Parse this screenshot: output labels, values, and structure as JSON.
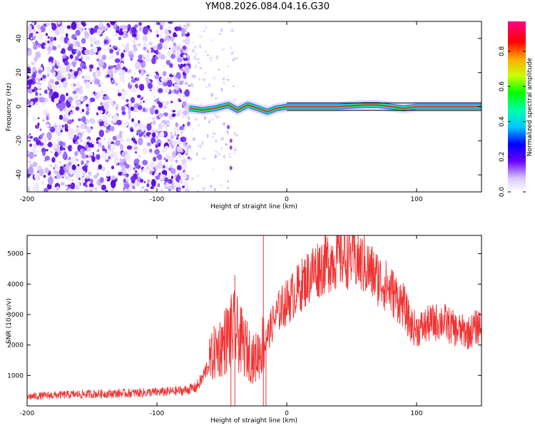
{
  "title": "YM08.2026.084.04.16.G30",
  "chart_data": [
    {
      "type": "heatmap",
      "title": "YM08.2026.084.04.16.G30",
      "xlabel": "Height of straight line (km)",
      "ylabel": "Frequency (Hz)",
      "xlim": [
        -200,
        150
      ],
      "ylim": [
        -50,
        50
      ],
      "xticks": [
        -200,
        -100,
        0,
        100
      ],
      "yticks": [
        -40,
        -20,
        0,
        20,
        40
      ],
      "track": {
        "description_x": [
          -75,
          -65,
          -55,
          -45,
          -38,
          -30,
          -22,
          -15,
          -8,
          0,
          20,
          40,
          60,
          70,
          80,
          90,
          100,
          120,
          150
        ],
        "description_y": [
          -1,
          -2,
          -1,
          1,
          -2,
          1,
          -1,
          -3,
          -1,
          0,
          0,
          0,
          1,
          1,
          0,
          -1,
          0,
          0,
          0
        ]
      }
    },
    {
      "type": "line",
      "title": "",
      "xlabel": "Height of straight line (km)",
      "ylabel": "SNR (10 * v/v)",
      "xlim": [
        -200,
        150
      ],
      "ylim": [
        0,
        5600
      ],
      "xticks": [
        -200,
        -100,
        0,
        100
      ],
      "yticks": [
        1000,
        2000,
        3000,
        4000,
        5000
      ],
      "color": "#f03232",
      "x": [
        -200,
        -180,
        -160,
        -140,
        -120,
        -100,
        -90,
        -80,
        -70,
        -65,
        -60,
        -55,
        -50,
        -45,
        -40,
        -35,
        -30,
        -25,
        -20,
        -15,
        -10,
        -5,
        0,
        10,
        20,
        30,
        40,
        50,
        60,
        70,
        80,
        90,
        95,
        100,
        110,
        120,
        130,
        140,
        150
      ],
      "y": [
        300,
        350,
        380,
        400,
        420,
        450,
        470,
        500,
        600,
        900,
        1400,
        1800,
        2000,
        2300,
        2500,
        2100,
        1800,
        1500,
        1900,
        2300,
        2800,
        3200,
        3400,
        3900,
        4400,
        4700,
        4900,
        4900,
        4600,
        4200,
        3800,
        3300,
        2700,
        2500,
        2700,
        2800,
        2500,
        2400,
        2700
      ]
    }
  ],
  "colorbar": {
    "label": "Normalized spectral amplitude",
    "ticks": [
      "0.0",
      "0.2",
      "0.4",
      "0.6",
      "0.8"
    ]
  }
}
